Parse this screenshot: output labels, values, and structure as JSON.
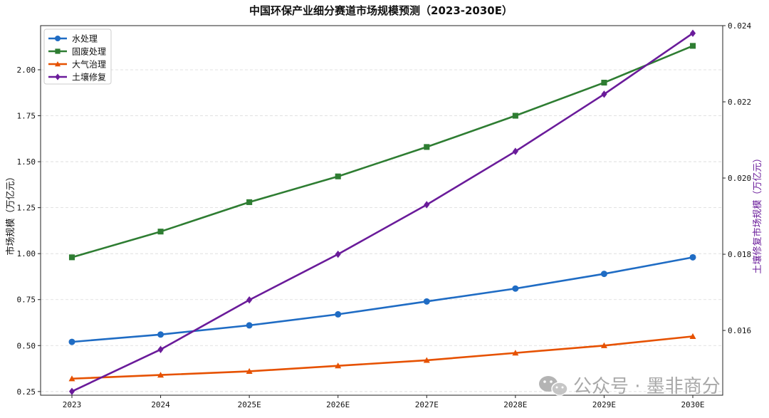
{
  "chart_data": {
    "type": "line",
    "title": "中国环保产业细分赛道市场规模预测（2023-2030E）",
    "categories": [
      "2023",
      "2024",
      "2025E",
      "2026E",
      "2027E",
      "2028E",
      "2029E",
      "2030E"
    ],
    "ylabel": "市场规模（万亿元）",
    "ylabel_right": "土壤修复市场规模（万亿元）",
    "ylim": [
      0.23,
      2.24
    ],
    "yticks": [
      "0.25",
      "0.50",
      "0.75",
      "1.00",
      "1.25",
      "1.50",
      "1.75",
      "2.00"
    ],
    "ylim_right": [
      0.0143,
      0.024
    ],
    "yticks_right": [
      "0.016",
      "0.018",
      "0.020",
      "0.022",
      "0.024"
    ],
    "grid": "horizontal-dashed",
    "legend_position": "top-left",
    "series": [
      {
        "name": "水处理",
        "axis": "left",
        "color": "#1f6cc4",
        "marker": "circle",
        "values": [
          0.52,
          0.56,
          0.61,
          0.67,
          0.74,
          0.81,
          0.89,
          0.98
        ]
      },
      {
        "name": "固废处理",
        "axis": "left",
        "color": "#2e7d32",
        "marker": "square",
        "values": [
          0.98,
          1.12,
          1.28,
          1.42,
          1.58,
          1.75,
          1.93,
          2.13
        ]
      },
      {
        "name": "大气治理",
        "axis": "left",
        "color": "#e65100",
        "marker": "triangle",
        "values": [
          0.32,
          0.34,
          0.36,
          0.39,
          0.42,
          0.46,
          0.5,
          0.55
        ]
      },
      {
        "name": "土壤修复",
        "axis": "right",
        "color": "#6a1b9a",
        "marker": "diamond",
        "values": [
          0.0144,
          0.0155,
          0.0168,
          0.018,
          0.0193,
          0.0207,
          0.0222,
          0.0238
        ]
      }
    ]
  },
  "watermark": {
    "text": "公众号 · 墨非商分",
    "icon": "wechat-icon"
  }
}
